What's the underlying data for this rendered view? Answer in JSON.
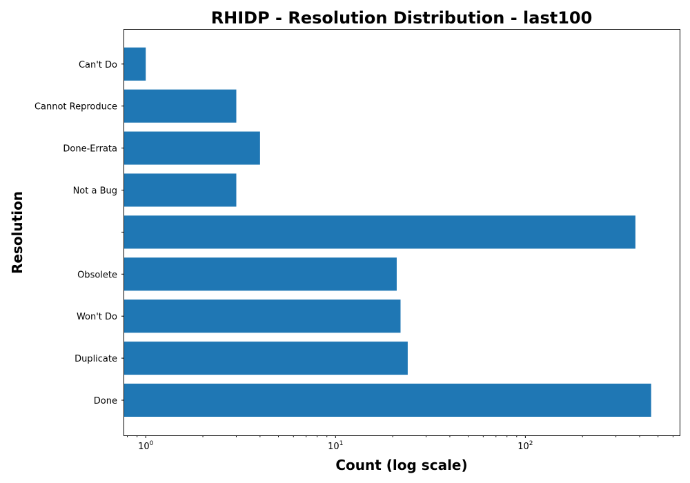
{
  "chart_data": {
    "type": "bar",
    "orientation": "horizontal",
    "title": "RHIDP - Resolution Distribution - last100",
    "xlabel": "Count (log scale)",
    "ylabel": "Resolution",
    "x_scale": "log",
    "xlim": [
      0.77,
      650
    ],
    "x_major_ticks": [
      {
        "base": "10",
        "exp": "0",
        "value": 1
      },
      {
        "base": "10",
        "exp": "1",
        "value": 10
      },
      {
        "base": "10",
        "exp": "2",
        "value": 100
      }
    ],
    "categories": [
      "Can't Do",
      "Cannot Reproduce",
      "Done-Errata",
      "Not a Bug",
      "",
      "Obsolete",
      "Won't Do",
      "Duplicate",
      "Done"
    ],
    "values": [
      1,
      3,
      4,
      3,
      380,
      21,
      22,
      24,
      460
    ],
    "bar_color": "#1f77b4",
    "grid": false,
    "legend": "none"
  }
}
